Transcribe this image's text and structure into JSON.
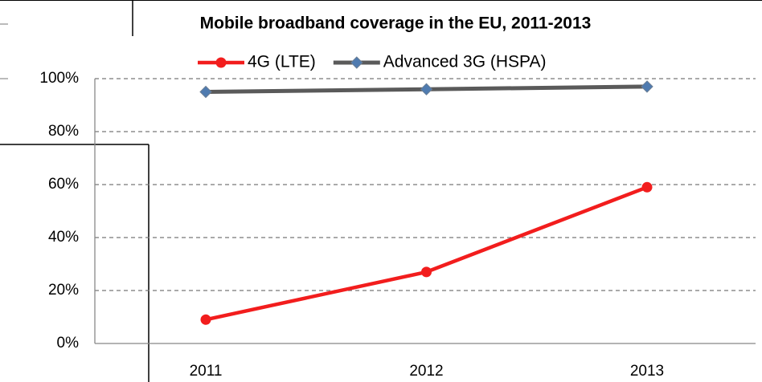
{
  "chart_data": {
    "type": "line",
    "title": "Mobile broadband coverage in the EU, 2011-2013",
    "categories": [
      "2011",
      "2012",
      "2013"
    ],
    "series": [
      {
        "name": "4G (LTE)",
        "color": "#f21d1d",
        "marker": "circle",
        "marker_color": "#f21d1d",
        "values": [
          9,
          27,
          59
        ]
      },
      {
        "name": "Advanced 3G (HSPA)",
        "color": "#5a5a5a",
        "marker": "diamond",
        "marker_color": "#4f7bb0",
        "values": [
          95,
          96,
          97
        ]
      }
    ],
    "ylim": [
      0,
      100
    ],
    "yticks": [
      {
        "value": 0,
        "label": "0%"
      },
      {
        "value": 20,
        "label": "20%"
      },
      {
        "value": 40,
        "label": "40%"
      },
      {
        "value": 60,
        "label": "60%"
      },
      {
        "value": 80,
        "label": "80%"
      },
      {
        "value": 100,
        "label": "100%"
      }
    ],
    "grid": true,
    "legend": "top"
  }
}
